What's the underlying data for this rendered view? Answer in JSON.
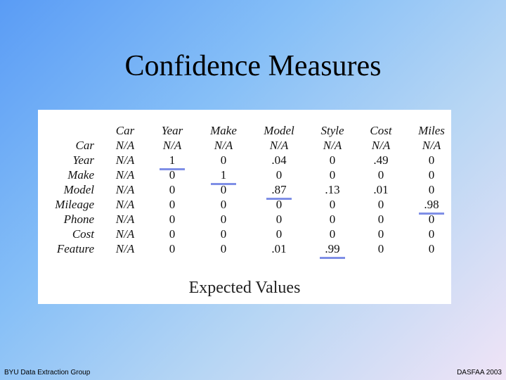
{
  "slide": {
    "title": "Confidence Measures",
    "caption": "Expected Values",
    "footer_left": "BYU Data Extraction Group",
    "footer_right": "DASFAA 2003"
  },
  "table": {
    "columns": [
      "Car",
      "Year",
      "Make",
      "Model",
      "Style",
      "Cost",
      "Miles"
    ],
    "rows": [
      {
        "label": "Car",
        "values": [
          "N/A",
          "N/A",
          "N/A",
          "N/A",
          "N/A",
          "N/A",
          "N/A"
        ]
      },
      {
        "label": "Year",
        "values": [
          "N/A",
          "1",
          "0",
          ".04",
          "0",
          ".49",
          "0"
        ]
      },
      {
        "label": "Make",
        "values": [
          "N/A",
          "0",
          "1",
          "0",
          "0",
          "0",
          "0"
        ]
      },
      {
        "label": "Model",
        "values": [
          "N/A",
          "0",
          "0",
          ".87",
          ".13",
          ".01",
          "0"
        ]
      },
      {
        "label": "Mileage",
        "values": [
          "N/A",
          "0",
          "0",
          "0",
          "0",
          "0",
          ".98"
        ]
      },
      {
        "label": "Phone",
        "values": [
          "N/A",
          "0",
          "0",
          "0",
          "0",
          "0",
          "0"
        ]
      },
      {
        "label": "Cost",
        "values": [
          "N/A",
          "0",
          "0",
          "0",
          "0",
          "0",
          "0"
        ]
      },
      {
        "label": "Feature",
        "values": [
          "N/A",
          "0",
          "0",
          ".01",
          ".99",
          "0",
          "0"
        ]
      }
    ],
    "highlighted": [
      {
        "row": 1,
        "col": 1
      },
      {
        "row": 2,
        "col": 2
      },
      {
        "row": 3,
        "col": 3
      },
      {
        "row": 4,
        "col": 6
      },
      {
        "row": 7,
        "col": 4
      }
    ],
    "highlight_color": "#7f8fe6"
  }
}
